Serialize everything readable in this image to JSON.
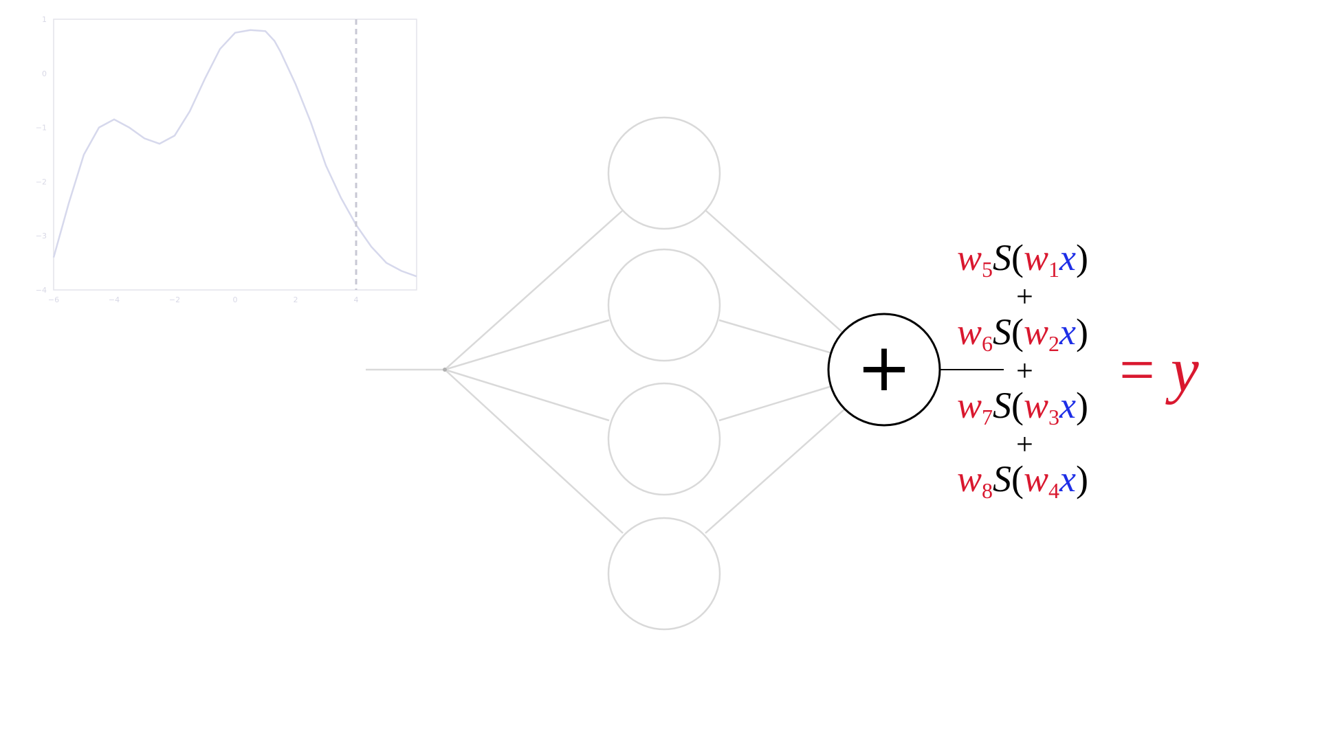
{
  "chart_data": {
    "type": "line",
    "title": "",
    "xlabel": "",
    "ylabel": "",
    "xlim": [
      -6,
      6
    ],
    "ylim": [
      -4,
      1
    ],
    "xticks": [
      "−6",
      "−4",
      "−2",
      "0",
      "2",
      "4"
    ],
    "yticks": [
      "1",
      "0",
      "−1",
      "−2",
      "−3",
      "−4"
    ],
    "grid": false,
    "series": [
      {
        "x": [
          -6,
          -5.5,
          -5,
          -4.5,
          -4,
          -3.5,
          -3,
          -2.5,
          -2,
          -1.5,
          -1,
          -0.5,
          0,
          0.5,
          1,
          1.3,
          1.5,
          2,
          2.5,
          3,
          3.5,
          4,
          4.5,
          5,
          5.5,
          6
        ],
        "values": [
          -3.4,
          -2.4,
          -1.5,
          -1.0,
          -0.85,
          -1.0,
          -1.2,
          -1.3,
          -1.15,
          -0.7,
          -0.1,
          0.45,
          0.75,
          0.8,
          0.78,
          0.6,
          0.4,
          -0.2,
          -0.9,
          -1.7,
          -2.3,
          -2.8,
          -3.2,
          -3.5,
          -3.65,
          -3.75
        ],
        "color": "#d6d8ec"
      }
    ],
    "vline_x": 4
  },
  "diagram": {
    "plus_symbol": "+",
    "line_color": "#d9d9d9",
    "output_color": "#000000",
    "equation": {
      "terms": [
        {
          "w_out": "w",
          "w_out_sub": "5",
          "s": "S",
          "w_in": "w",
          "w_in_sub": "1",
          "x": "x"
        },
        {
          "w_out": "w",
          "w_out_sub": "6",
          "s": "S",
          "w_in": "w",
          "w_in_sub": "2",
          "x": "x"
        },
        {
          "w_out": "w",
          "w_out_sub": "7",
          "s": "S",
          "w_in": "w",
          "w_in_sub": "3",
          "x": "x"
        },
        {
          "w_out": "w",
          "w_out_sub": "8",
          "s": "S",
          "w_in": "w",
          "w_in_sub": "4",
          "x": "x"
        }
      ],
      "plus": "+",
      "open_paren": "(",
      "close_paren": ")",
      "result_equals": "=",
      "result_var": "y",
      "colors": {
        "weight": "#d9182f",
        "input": "#1e2fe6",
        "function": "#000000"
      }
    }
  }
}
